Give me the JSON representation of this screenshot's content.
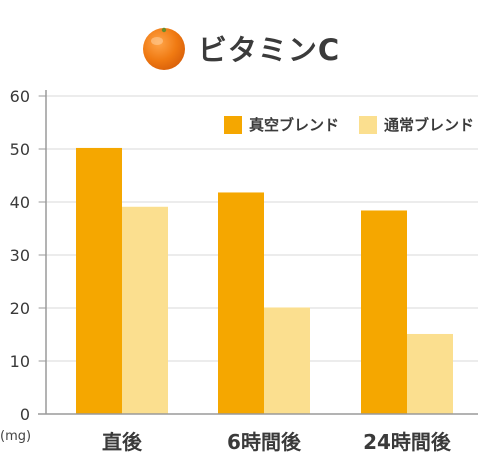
{
  "header": {
    "title": "ビタミンC",
    "icon": "orange-fruit-icon"
  },
  "colors": {
    "vacuum": "#f5a700",
    "normal": "#fbdf8f",
    "axis": "#9a9a9a",
    "grid": "#d9d9d9"
  },
  "chart_data": {
    "type": "bar",
    "title": "ビタミンC",
    "unit": "(mg)",
    "categories": [
      "直後",
      "6時間後",
      "24時間後"
    ],
    "series": [
      {
        "name": "真空ブレンド",
        "values": [
          50.2,
          41.8,
          38.4
        ]
      },
      {
        "name": "通常ブレンド",
        "values": [
          39.1,
          20.1,
          15.1
        ]
      }
    ],
    "yticks": [
      0,
      10,
      20,
      30,
      40,
      50,
      60
    ],
    "ylim": [
      0,
      60
    ],
    "grid": true,
    "legend_position": "top-right"
  }
}
